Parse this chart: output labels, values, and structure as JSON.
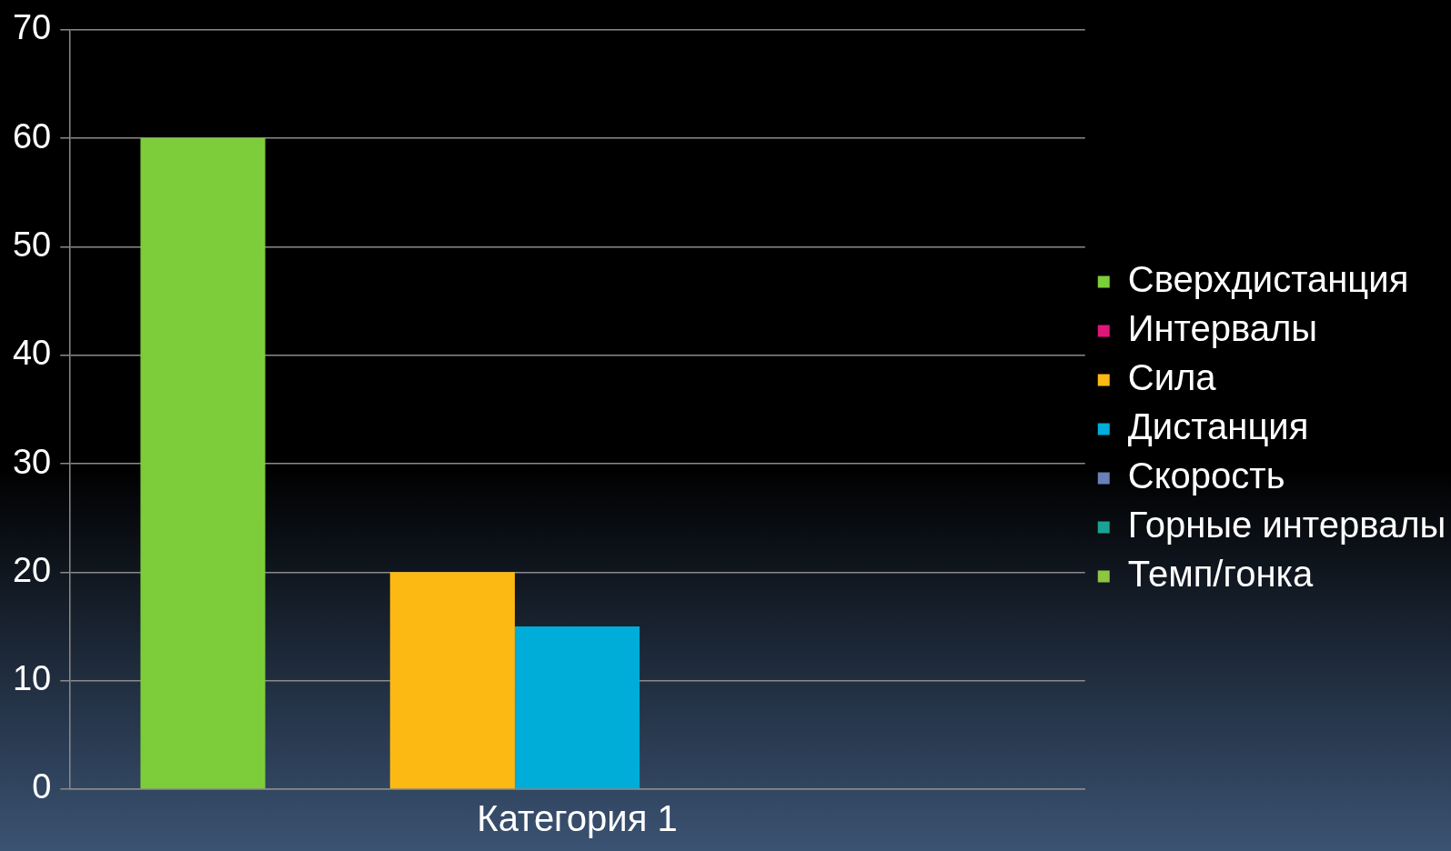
{
  "chart_data": {
    "type": "bar",
    "categories": [
      "Категория 1"
    ],
    "series": [
      {
        "name": "Сверхдистанция",
        "color": "#7dcd3a",
        "values": [
          60
        ]
      },
      {
        "name": "Интервалы",
        "color": "#e0157a",
        "values": [
          0
        ]
      },
      {
        "name": "Сила",
        "color": "#fdb913",
        "values": [
          20
        ]
      },
      {
        "name": "Дистанция",
        "color": "#00acd8",
        "values": [
          15
        ]
      },
      {
        "name": "Скорость",
        "color": "#6b7fb8",
        "values": [
          0
        ]
      },
      {
        "name": "Горные интервалы",
        "color": "#1aa393",
        "values": [
          0
        ]
      },
      {
        "name": "Темп/гонка",
        "color": "#8dc63f",
        "values": [
          0
        ]
      }
    ],
    "ylim": [
      0,
      70
    ],
    "yticks": [
      0,
      10,
      20,
      30,
      40,
      50,
      60,
      70
    ],
    "grid": "y",
    "legend": "right"
  }
}
